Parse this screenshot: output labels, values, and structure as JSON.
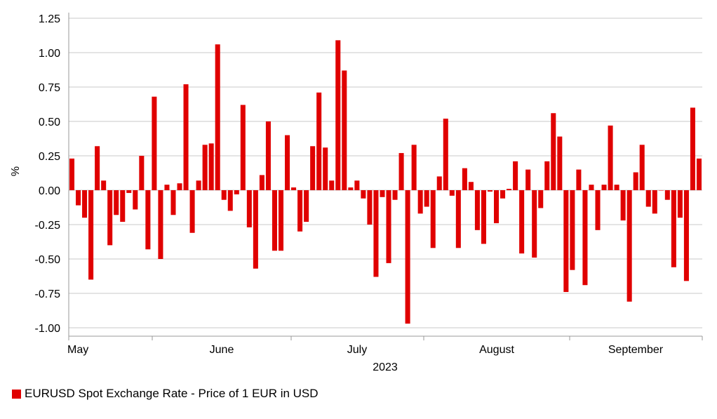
{
  "chart_data": {
    "type": "bar",
    "title": "",
    "xlabel": "2023",
    "ylabel": "%",
    "ylim": [
      -1.0,
      1.25
    ],
    "yticks": [
      1.25,
      1.0,
      0.75,
      0.5,
      0.25,
      0.0,
      -0.25,
      -0.5,
      -0.75,
      -1.0
    ],
    "ytick_labels": [
      "1.25",
      "1.00",
      "0.75",
      "0.50",
      "0.25",
      "0.00",
      "-0.25",
      "-0.50",
      "-0.75",
      "-1.00"
    ],
    "xtick_labels": [
      "May",
      "June",
      "July",
      "August",
      "September"
    ],
    "grid": "horizontal",
    "legend_position": "bottom-left",
    "color": "#e00000",
    "series": [
      {
        "name": "EURUSD Spot Exchange Rate - Price of 1 EUR in USD",
        "values": [
          0.23,
          -0.11,
          -0.2,
          -0.65,
          0.32,
          0.07,
          -0.4,
          -0.18,
          -0.23,
          -0.02,
          -0.14,
          0.25,
          -0.43,
          0.68,
          -0.5,
          0.04,
          -0.18,
          0.05,
          0.77,
          -0.31,
          0.07,
          0.33,
          0.34,
          1.06,
          -0.07,
          -0.15,
          -0.03,
          0.62,
          -0.27,
          -0.57,
          0.11,
          0.5,
          -0.44,
          -0.44,
          0.4,
          0.02,
          -0.3,
          -0.23,
          0.32,
          0.71,
          0.31,
          0.07,
          1.09,
          0.87,
          0.02,
          0.07,
          -0.06,
          -0.25,
          -0.63,
          -0.05,
          -0.53,
          -0.07,
          0.27,
          -0.97,
          0.33,
          -0.17,
          -0.12,
          -0.42,
          0.1,
          0.52,
          -0.04,
          -0.42,
          0.16,
          0.06,
          -0.29,
          -0.39,
          -0.01,
          -0.24,
          -0.06,
          0.01,
          0.21,
          -0.46,
          0.15,
          -0.49,
          -0.13,
          0.21,
          0.56,
          0.39,
          -0.74,
          -0.58,
          0.15,
          -0.69,
          0.04,
          -0.29,
          0.04,
          0.47,
          0.04,
          -0.22,
          -0.81,
          0.13,
          0.33,
          -0.12,
          -0.17,
          0.0,
          -0.07,
          -0.56,
          -0.2,
          -0.66,
          0.6,
          0.23
        ]
      }
    ]
  }
}
